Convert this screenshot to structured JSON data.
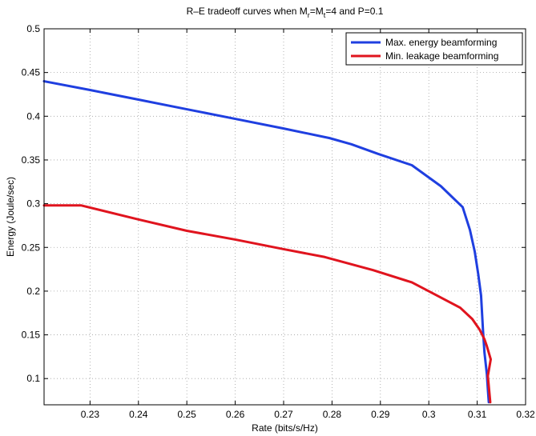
{
  "chart_data": {
    "type": "line",
    "title": {
      "prefix": "R–E tradeoff curves when M",
      "sub1": "r",
      "mid": "=M",
      "sub2": "t",
      "suffix": "=4 and P=0.1"
    },
    "xlabel": "Rate (bits/s/Hz)",
    "ylabel": "Energy (Joule/sec)",
    "xlim": [
      0.2205,
      0.32
    ],
    "ylim": [
      0.07,
      0.5
    ],
    "xticks": [
      0.23,
      0.24,
      0.25,
      0.26,
      0.27,
      0.28,
      0.29,
      0.3,
      0.31,
      0.32
    ],
    "xtick_labels": [
      "0.23",
      "0.24",
      "0.25",
      "0.26",
      "0.27",
      "0.28",
      "0.29",
      "0.3",
      "0.31",
      "0.32"
    ],
    "yticks": [
      0.1,
      0.15,
      0.2,
      0.25,
      0.3,
      0.35,
      0.4,
      0.45,
      0.5
    ],
    "ytick_labels": [
      "0.1",
      "0.15",
      "0.2",
      "0.25",
      "0.3",
      "0.35",
      "0.4",
      "0.45",
      "0.5"
    ],
    "grid": true,
    "legend_position": "top-right",
    "series": [
      {
        "name": "Max. energy beamforming",
        "color": "#1f3fe0",
        "x": [
          0.2205,
          0.23,
          0.24,
          0.25,
          0.26,
          0.27,
          0.2795,
          0.284,
          0.2895,
          0.2965,
          0.3025,
          0.307,
          0.3085,
          0.3095,
          0.3102,
          0.3108,
          0.311,
          0.3112,
          0.3115,
          0.312,
          0.3122,
          0.3124
        ],
        "y": [
          0.44,
          0.43,
          0.419,
          0.408,
          0.397,
          0.386,
          0.375,
          0.368,
          0.357,
          0.344,
          0.32,
          0.296,
          0.27,
          0.245,
          0.22,
          0.195,
          0.175,
          0.155,
          0.13,
          0.105,
          0.088,
          0.073
        ]
      },
      {
        "name": "Min. leakage beamforming",
        "color": "#e0141e",
        "x": [
          0.2205,
          0.2282,
          0.24,
          0.25,
          0.26,
          0.27,
          0.2785,
          0.2885,
          0.2965,
          0.301,
          0.3065,
          0.309,
          0.3105,
          0.3115,
          0.312,
          0.3128,
          0.3122,
          0.3125,
          0.3127
        ],
        "y": [
          0.298,
          0.298,
          0.282,
          0.269,
          0.259,
          0.248,
          0.239,
          0.224,
          0.21,
          0.197,
          0.181,
          0.168,
          0.156,
          0.145,
          0.137,
          0.122,
          0.103,
          0.085,
          0.073
        ]
      }
    ]
  }
}
